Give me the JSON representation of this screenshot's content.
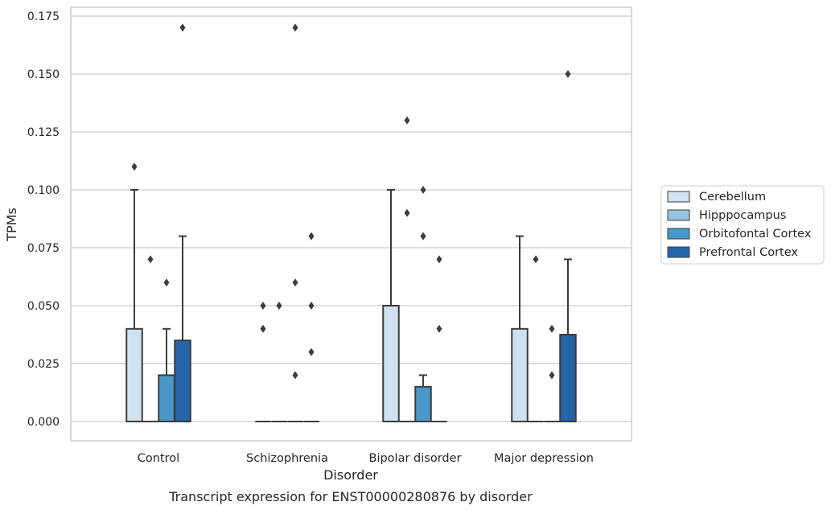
{
  "chart_data": {
    "type": "box",
    "title": "",
    "xlabel": "Disorder",
    "ylabel": "TPMs",
    "caption": "Transcript expression for ENST00000280876 by disorder",
    "ylim": [
      -0.0085,
      0.179
    ],
    "yticks": [
      0.0,
      0.025,
      0.05,
      0.075,
      0.1,
      0.125,
      0.15,
      0.175
    ],
    "ytick_labels": [
      "0.000",
      "0.025",
      "0.050",
      "0.075",
      "0.100",
      "0.125",
      "0.150",
      "0.175"
    ],
    "grid": "horizontal",
    "legend_position": "right",
    "categories": [
      "Control",
      "Schizophrenia",
      "Bipolar disorder",
      "Major depression"
    ],
    "series": [
      {
        "name": "Cerebellum",
        "color": "#d0e1f2",
        "boxes": [
          {
            "q1": 0.0,
            "median": 0.0,
            "q3": 0.04,
            "whisker_low": 0.0,
            "whisker_high": 0.1,
            "outliers": [
              0.11
            ]
          },
          {
            "q1": 0.0,
            "median": 0.0,
            "q3": 0.0,
            "whisker_low": 0.0,
            "whisker_high": 0.0,
            "outliers": [
              0.04,
              0.05
            ]
          },
          {
            "q1": 0.0,
            "median": 0.0,
            "q3": 0.05,
            "whisker_low": 0.0,
            "whisker_high": 0.1,
            "outliers": []
          },
          {
            "q1": 0.0,
            "median": 0.0,
            "q3": 0.04,
            "whisker_low": 0.0,
            "whisker_high": 0.08,
            "outliers": []
          }
        ]
      },
      {
        "name": "Hipppocampus",
        "color": "#94c4df",
        "boxes": [
          {
            "q1": 0.0,
            "median": 0.0,
            "q3": 0.0,
            "whisker_low": 0.0,
            "whisker_high": 0.0,
            "outliers": [
              0.07
            ]
          },
          {
            "q1": 0.0,
            "median": 0.0,
            "q3": 0.0,
            "whisker_low": 0.0,
            "whisker_high": 0.0,
            "outliers": [
              0.05
            ]
          },
          {
            "q1": 0.0,
            "median": 0.0,
            "q3": 0.0,
            "whisker_low": 0.0,
            "whisker_high": 0.0,
            "outliers": [
              0.09,
              0.13
            ]
          },
          {
            "q1": 0.0,
            "median": 0.0,
            "q3": 0.0,
            "whisker_low": 0.0,
            "whisker_high": 0.0,
            "outliers": [
              0.07
            ]
          }
        ]
      },
      {
        "name": "Orbitofontal Cortex",
        "color": "#4a98c9",
        "boxes": [
          {
            "q1": 0.0,
            "median": 0.0,
            "q3": 0.02,
            "whisker_low": 0.0,
            "whisker_high": 0.04,
            "outliers": [
              0.06
            ]
          },
          {
            "q1": 0.0,
            "median": 0.0,
            "q3": 0.0,
            "whisker_low": 0.0,
            "whisker_high": 0.0,
            "outliers": [
              0.02,
              0.06,
              0.17
            ]
          },
          {
            "q1": 0.0,
            "median": 0.0,
            "q3": 0.015,
            "whisker_low": 0.0,
            "whisker_high": 0.02,
            "outliers": [
              0.08,
              0.1
            ]
          },
          {
            "q1": 0.0,
            "median": 0.0,
            "q3": 0.0,
            "whisker_low": 0.0,
            "whisker_high": 0.0,
            "outliers": [
              0.02,
              0.04
            ]
          }
        ]
      },
      {
        "name": "Prefrontal Cortex",
        "color": "#2464a8",
        "boxes": [
          {
            "q1": 0.0,
            "median": 0.0,
            "q3": 0.035,
            "whisker_low": 0.0,
            "whisker_high": 0.08,
            "outliers": [
              0.17
            ]
          },
          {
            "q1": 0.0,
            "median": 0.0,
            "q3": 0.0,
            "whisker_low": 0.0,
            "whisker_high": 0.0,
            "outliers": [
              0.03,
              0.05,
              0.08
            ]
          },
          {
            "q1": 0.0,
            "median": 0.0,
            "q3": 0.0,
            "whisker_low": 0.0,
            "whisker_high": 0.0,
            "outliers": [
              0.04,
              0.07
            ]
          },
          {
            "q1": 0.0,
            "median": 0.0,
            "q3": 0.0375,
            "whisker_low": 0.0,
            "whisker_high": 0.07,
            "outliers": [
              0.15
            ]
          }
        ]
      }
    ]
  }
}
